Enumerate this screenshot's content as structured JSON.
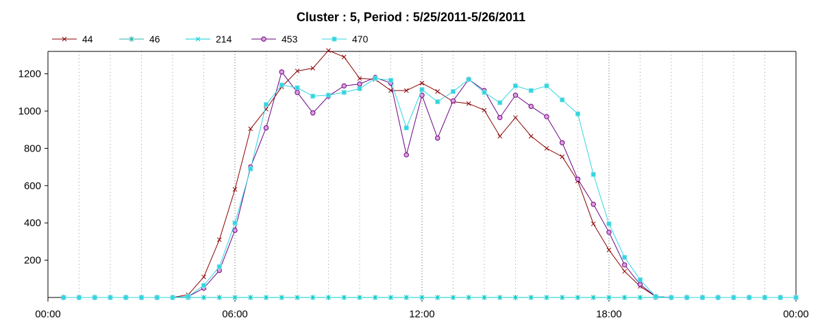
{
  "chart_data": {
    "type": "line",
    "title": "Cluster : 5, Period : 5/25/2011-5/26/2011",
    "xlabel": "",
    "ylabel": "",
    "xlim": [
      "00:00",
      "24:00"
    ],
    "ylim": [
      0,
      1320
    ],
    "x_ticks": [
      "00:00",
      "06:00",
      "12:00",
      "18:00",
      "00:00"
    ],
    "y_ticks": [
      200,
      400,
      600,
      800,
      1000,
      1200
    ],
    "grid": "vertical dotted",
    "legend_position": "top-left",
    "x_hours": [
      0.5,
      1,
      1.5,
      2,
      2.5,
      3,
      3.5,
      4,
      4.5,
      5,
      5.5,
      6,
      6.5,
      7,
      7.5,
      8,
      8.5,
      9,
      9.5,
      10,
      10.5,
      11,
      11.5,
      12,
      12.5,
      13,
      13.5,
      14,
      14.5,
      15,
      15.5,
      16,
      16.5,
      17,
      17.5,
      18,
      18.5,
      19,
      19.5,
      20,
      20.5,
      21,
      21.5,
      22,
      22.5,
      23,
      23.5,
      24
    ],
    "series": [
      {
        "name": "44",
        "color": "#8b0000",
        "marker": "x",
        "values": [
          0,
          0,
          0,
          0,
          0,
          0,
          0,
          0,
          15,
          110,
          310,
          580,
          905,
          1010,
          1130,
          1215,
          1230,
          1325,
          1290,
          1175,
          1170,
          1110,
          1110,
          1150,
          1105,
          1050,
          1040,
          1005,
          865,
          965,
          865,
          800,
          755,
          625,
          395,
          255,
          140,
          60,
          5,
          0,
          0,
          0,
          0,
          0,
          0,
          0,
          0,
          0
        ]
      },
      {
        "name": "46",
        "color": "#20b2aa",
        "marker": "star",
        "values": [
          0,
          0,
          0,
          0,
          0,
          0,
          0,
          0,
          0,
          0,
          0,
          0,
          0,
          0,
          0,
          0,
          0,
          0,
          0,
          0,
          0,
          0,
          0,
          0,
          0,
          0,
          0,
          0,
          0,
          0,
          0,
          0,
          0,
          0,
          0,
          0,
          0,
          0,
          0,
          0,
          0,
          0,
          0,
          0,
          0,
          0,
          0,
          0
        ]
      },
      {
        "name": "214",
        "color": "#00ced1",
        "marker": "x",
        "values": [
          0,
          0,
          0,
          0,
          0,
          0,
          0,
          0,
          0,
          0,
          0,
          0,
          0,
          0,
          0,
          0,
          0,
          0,
          0,
          0,
          0,
          0,
          0,
          0,
          0,
          0,
          0,
          0,
          0,
          0,
          0,
          0,
          0,
          0,
          0,
          0,
          0,
          0,
          0,
          0,
          0,
          0,
          0,
          0,
          0,
          0,
          0,
          0
        ]
      },
      {
        "name": "453",
        "color": "#6a0080",
        "marker": "circle",
        "values": [
          0,
          0,
          0,
          0,
          0,
          0,
          0,
          0,
          5,
          50,
          145,
          360,
          700,
          910,
          1210,
          1100,
          990,
          1080,
          1135,
          1145,
          1180,
          1150,
          765,
          1085,
          855,
          1055,
          1170,
          1110,
          965,
          1085,
          1025,
          970,
          830,
          635,
          500,
          350,
          175,
          70,
          5,
          0,
          0,
          0,
          0,
          0,
          0,
          0,
          0,
          0
        ]
      },
      {
        "name": "470",
        "color": "#2fd5e0",
        "marker": "square",
        "values": [
          0,
          0,
          0,
          0,
          0,
          0,
          0,
          0,
          5,
          65,
          165,
          400,
          690,
          1035,
          1140,
          1125,
          1080,
          1085,
          1100,
          1120,
          1175,
          1165,
          910,
          1115,
          1050,
          1105,
          1170,
          1100,
          1045,
          1135,
          1110,
          1135,
          1060,
          985,
          660,
          395,
          215,
          95,
          5,
          0,
          0,
          0,
          0,
          0,
          0,
          0,
          0,
          0
        ]
      }
    ]
  }
}
